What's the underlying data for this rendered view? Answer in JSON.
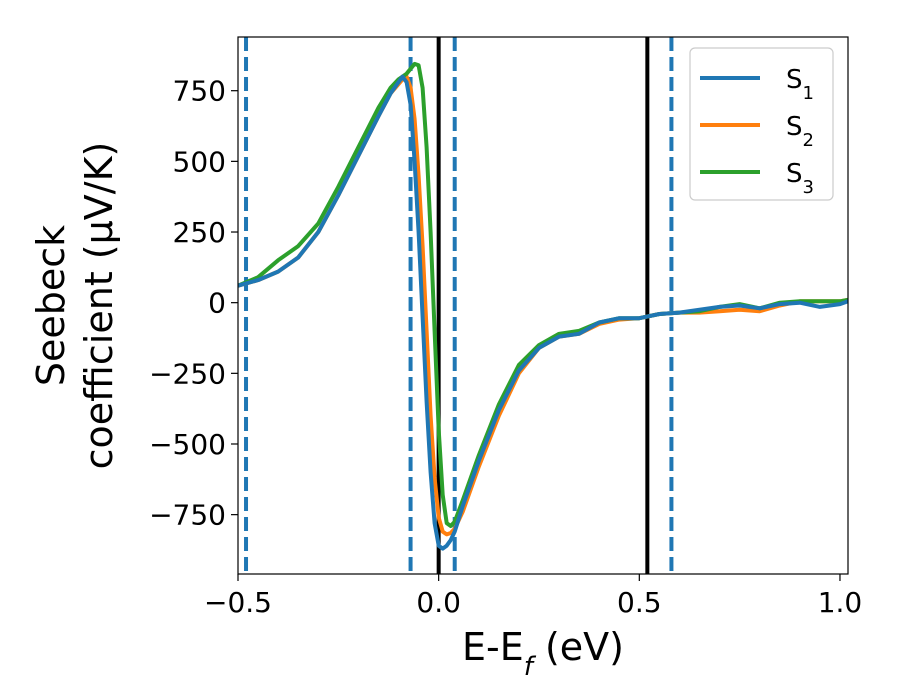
{
  "chart_data": {
    "type": "line",
    "xlabel": "E-E_f (eV)",
    "xlabel_main": "E-E",
    "xlabel_sub": "f",
    "xlabel_tail": " (eV)",
    "ylabel_line1": "Seebeck",
    "ylabel_line2": "coefficient  (μV/K)",
    "xlim": [
      -0.5,
      1.02
    ],
    "ylim": [
      -960,
      940
    ],
    "xticks": [
      -0.5,
      0.0,
      0.5,
      1.0
    ],
    "xtick_labels": [
      "−0.5",
      "0.0",
      "0.5",
      "1.0"
    ],
    "yticks": [
      -750,
      -500,
      -250,
      0,
      250,
      500,
      750
    ],
    "ytick_labels": [
      "−750",
      "−500",
      "−250",
      "0",
      "250",
      "500",
      "750"
    ],
    "grid": false,
    "legend_position": "top-right",
    "vlines_solid": [
      0.0,
      0.52
    ],
    "vlines_dashed": [
      -0.48,
      -0.07,
      0.04,
      0.58
    ],
    "series": [
      {
        "name": "S1",
        "label_main": "S",
        "label_sub": "1",
        "color": "#1f77b4",
        "points": [
          [
            -0.5,
            60
          ],
          [
            -0.45,
            80
          ],
          [
            -0.4,
            110
          ],
          [
            -0.35,
            160
          ],
          [
            -0.3,
            250
          ],
          [
            -0.25,
            380
          ],
          [
            -0.2,
            520
          ],
          [
            -0.15,
            660
          ],
          [
            -0.12,
            740
          ],
          [
            -0.09,
            800
          ],
          [
            -0.08,
            780
          ],
          [
            -0.07,
            700
          ],
          [
            -0.06,
            500
          ],
          [
            -0.05,
            250
          ],
          [
            -0.04,
            -50
          ],
          [
            -0.03,
            -350
          ],
          [
            -0.02,
            -600
          ],
          [
            -0.01,
            -780
          ],
          [
            0.0,
            -860
          ],
          [
            0.01,
            -870
          ],
          [
            0.02,
            -860
          ],
          [
            0.03,
            -840
          ],
          [
            0.04,
            -810
          ],
          [
            0.06,
            -720
          ],
          [
            0.1,
            -560
          ],
          [
            0.15,
            -380
          ],
          [
            0.2,
            -240
          ],
          [
            0.25,
            -160
          ],
          [
            0.3,
            -120
          ],
          [
            0.35,
            -110
          ],
          [
            0.4,
            -70
          ],
          [
            0.45,
            -55
          ],
          [
            0.5,
            -55
          ],
          [
            0.55,
            -40
          ],
          [
            0.6,
            -35
          ],
          [
            0.65,
            -25
          ],
          [
            0.7,
            -15
          ],
          [
            0.75,
            -10
          ],
          [
            0.8,
            -20
          ],
          [
            0.85,
            -5
          ],
          [
            0.9,
            0
          ],
          [
            0.95,
            -15
          ],
          [
            1.0,
            -5
          ],
          [
            1.02,
            5
          ]
        ]
      },
      {
        "name": "S2",
        "label_main": "S",
        "label_sub": "2",
        "color": "#ff7f0e",
        "points": [
          [
            -0.5,
            60
          ],
          [
            -0.45,
            80
          ],
          [
            -0.4,
            110
          ],
          [
            -0.35,
            160
          ],
          [
            -0.3,
            250
          ],
          [
            -0.25,
            380
          ],
          [
            -0.2,
            520
          ],
          [
            -0.15,
            660
          ],
          [
            -0.12,
            740
          ],
          [
            -0.09,
            790
          ],
          [
            -0.08,
            800
          ],
          [
            -0.07,
            760
          ],
          [
            -0.06,
            650
          ],
          [
            -0.05,
            450
          ],
          [
            -0.04,
            200
          ],
          [
            -0.03,
            -100
          ],
          [
            -0.02,
            -400
          ],
          [
            -0.01,
            -620
          ],
          [
            0.0,
            -760
          ],
          [
            0.01,
            -810
          ],
          [
            0.02,
            -820
          ],
          [
            0.03,
            -815
          ],
          [
            0.04,
            -800
          ],
          [
            0.06,
            -740
          ],
          [
            0.1,
            -580
          ],
          [
            0.15,
            -400
          ],
          [
            0.2,
            -250
          ],
          [
            0.25,
            -160
          ],
          [
            0.3,
            -120
          ],
          [
            0.35,
            -110
          ],
          [
            0.4,
            -75
          ],
          [
            0.45,
            -60
          ],
          [
            0.5,
            -55
          ],
          [
            0.55,
            -40
          ],
          [
            0.6,
            -35
          ],
          [
            0.65,
            -35
          ],
          [
            0.7,
            -30
          ],
          [
            0.75,
            -25
          ],
          [
            0.8,
            -30
          ],
          [
            0.85,
            -10
          ],
          [
            0.9,
            5
          ],
          [
            0.95,
            5
          ],
          [
            1.0,
            5
          ],
          [
            1.02,
            10
          ]
        ]
      },
      {
        "name": "S3",
        "label_main": "S",
        "label_sub": "3",
        "color": "#2ca02c",
        "points": [
          [
            -0.5,
            60
          ],
          [
            -0.45,
            90
          ],
          [
            -0.4,
            150
          ],
          [
            -0.35,
            200
          ],
          [
            -0.3,
            280
          ],
          [
            -0.25,
            410
          ],
          [
            -0.2,
            550
          ],
          [
            -0.15,
            690
          ],
          [
            -0.12,
            760
          ],
          [
            -0.1,
            790
          ],
          [
            -0.08,
            810
          ],
          [
            -0.06,
            845
          ],
          [
            -0.05,
            840
          ],
          [
            -0.04,
            760
          ],
          [
            -0.03,
            550
          ],
          [
            -0.02,
            250
          ],
          [
            -0.01,
            -100
          ],
          [
            0.0,
            -450
          ],
          [
            0.01,
            -680
          ],
          [
            0.02,
            -780
          ],
          [
            0.03,
            -790
          ],
          [
            0.04,
            -775
          ],
          [
            0.06,
            -700
          ],
          [
            0.1,
            -540
          ],
          [
            0.15,
            -360
          ],
          [
            0.2,
            -220
          ],
          [
            0.25,
            -150
          ],
          [
            0.3,
            -110
          ],
          [
            0.35,
            -100
          ],
          [
            0.4,
            -70
          ],
          [
            0.45,
            -55
          ],
          [
            0.5,
            -55
          ],
          [
            0.55,
            -40
          ],
          [
            0.6,
            -35
          ],
          [
            0.65,
            -30
          ],
          [
            0.7,
            -15
          ],
          [
            0.75,
            -5
          ],
          [
            0.8,
            -20
          ],
          [
            0.85,
            0
          ],
          [
            0.9,
            5
          ],
          [
            0.95,
            5
          ],
          [
            1.0,
            5
          ],
          [
            1.02,
            10
          ]
        ]
      }
    ]
  }
}
